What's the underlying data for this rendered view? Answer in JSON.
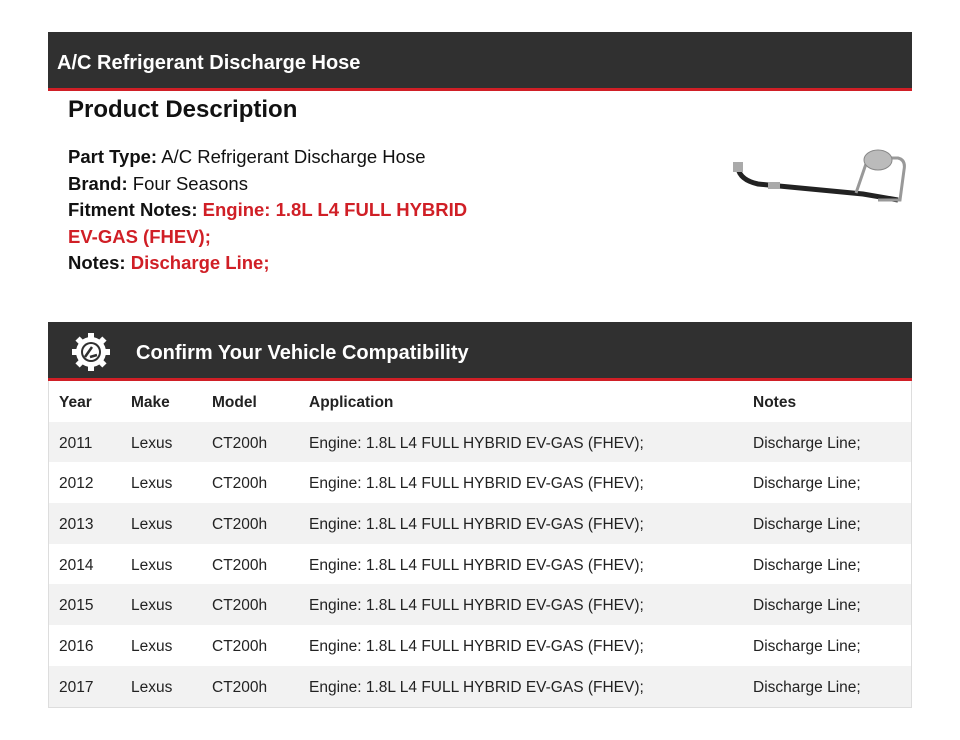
{
  "header": {
    "title": "A/C Refrigerant Discharge Hose"
  },
  "description": {
    "heading": "Product Description",
    "part_type_label": "Part Type:",
    "part_type": "A/C Refrigerant Discharge Hose",
    "brand_label": "Brand:",
    "brand": "Four Seasons",
    "fitment_label": "Fitment Notes:",
    "fitment": "Engine: 1.8L L4 FULL HYBRID EV-GAS (FHEV);",
    "notes_label": "Notes:",
    "notes": "Discharge Line;"
  },
  "compat": {
    "title": "Confirm Your Vehicle Compatibility",
    "icon": "gear-car-icon",
    "columns": [
      "Year",
      "Make",
      "Model",
      "Application",
      "Notes"
    ],
    "rows": [
      [
        "2011",
        "Lexus",
        "CT200h",
        "Engine: 1.8L L4 FULL HYBRID EV-GAS (FHEV);",
        "Discharge Line;"
      ],
      [
        "2012",
        "Lexus",
        "CT200h",
        "Engine: 1.8L L4 FULL HYBRID EV-GAS (FHEV);",
        "Discharge Line;"
      ],
      [
        "2013",
        "Lexus",
        "CT200h",
        "Engine: 1.8L L4 FULL HYBRID EV-GAS (FHEV);",
        "Discharge Line;"
      ],
      [
        "2014",
        "Lexus",
        "CT200h",
        "Engine: 1.8L L4 FULL HYBRID EV-GAS (FHEV);",
        "Discharge Line;"
      ],
      [
        "2015",
        "Lexus",
        "CT200h",
        "Engine: 1.8L L4 FULL HYBRID EV-GAS (FHEV);",
        "Discharge Line;"
      ],
      [
        "2016",
        "Lexus",
        "CT200h",
        "Engine: 1.8L L4 FULL HYBRID EV-GAS (FHEV);",
        "Discharge Line;"
      ],
      [
        "2017",
        "Lexus",
        "CT200h",
        "Engine: 1.8L L4 FULL HYBRID EV-GAS (FHEV);",
        "Discharge Line;"
      ]
    ]
  },
  "colors": {
    "bar": "#303030",
    "accent": "#d01f26"
  }
}
